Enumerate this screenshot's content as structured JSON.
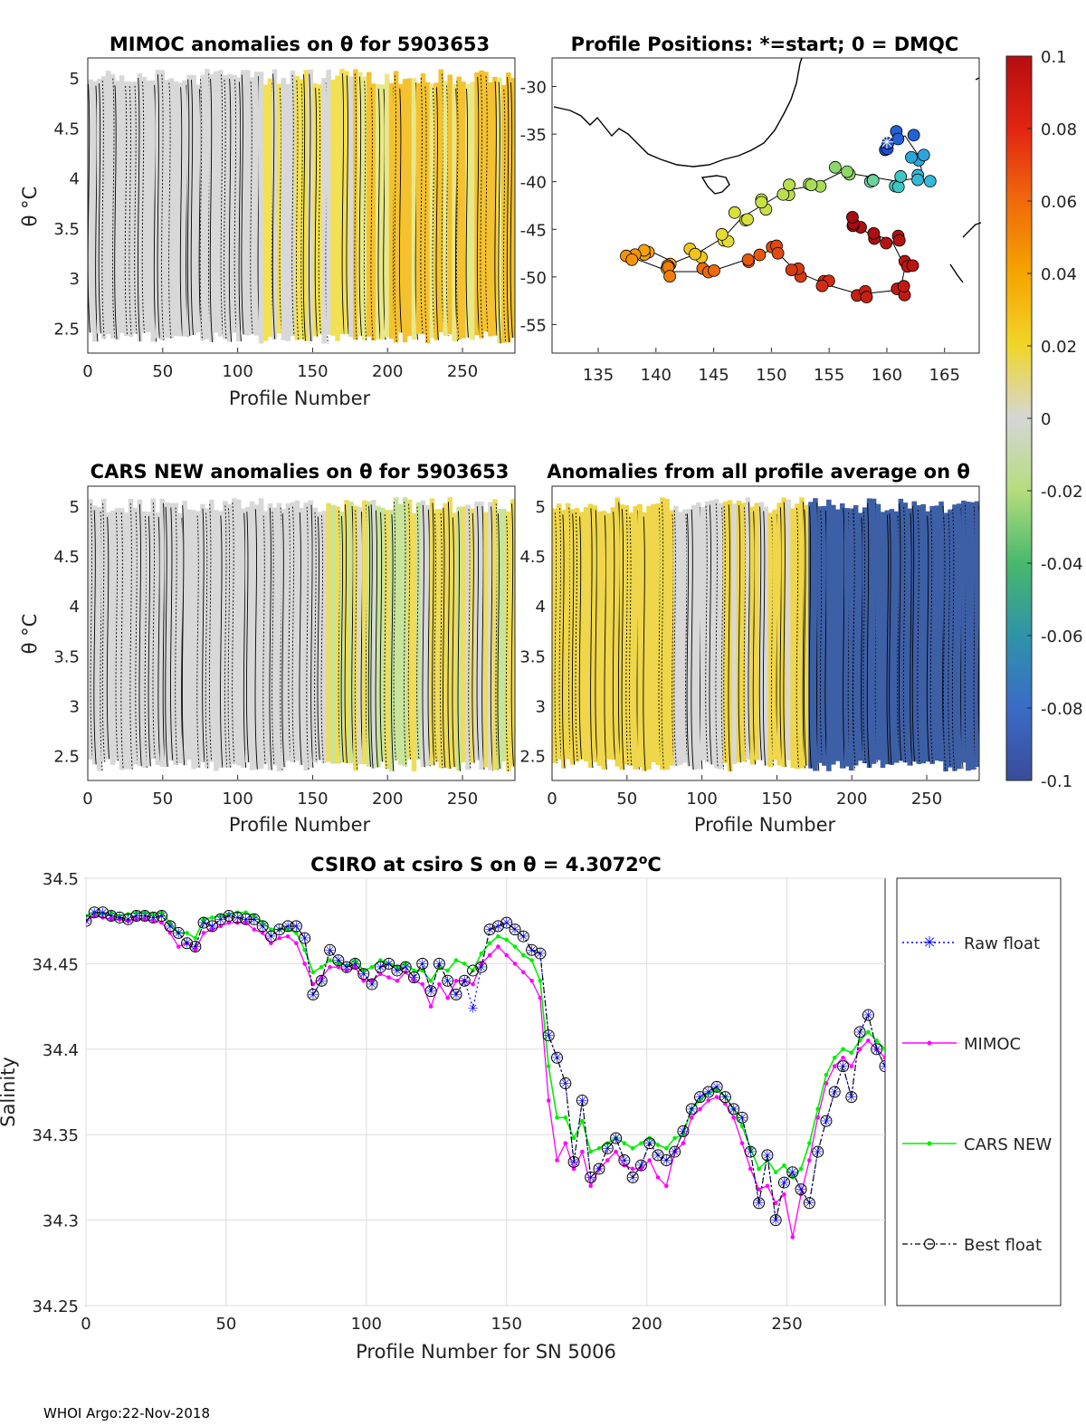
{
  "colors": {
    "raw": "#0000ff",
    "mimoc": "#ff00ff",
    "cars": "#00ee00",
    "best": "#000000",
    "grid": "#dddddd",
    "cbar": [
      "#3a4c9a",
      "#3b6ec6",
      "#2f9a9e",
      "#44b86a",
      "#b6dd7a",
      "#d4d4d4",
      "#ece44a",
      "#f5c400",
      "#f39100",
      "#e64a12",
      "#b80d12"
    ]
  },
  "footer": "WHOI Argo:22-Nov-2018",
  "colorbar": {
    "ticks": [
      "0.1",
      "0.08",
      "0.06",
      "0.04",
      "0.02",
      "0",
      "-0.02",
      "-0.04",
      "-0.06",
      "-0.08",
      "-0.1"
    ]
  },
  "panels": {
    "mimoc": {
      "title": "MIMOC anomalies on θ  for 5903653",
      "ylabel": "θ °C",
      "xlabel": "Profile Number",
      "xticks": [
        "0",
        "50",
        "100",
        "150",
        "200",
        "250"
      ],
      "yticks": [
        "5",
        "4.5",
        "4",
        "3.5",
        "3",
        "2.5"
      ]
    },
    "map": {
      "title": "Profile Positions: *=start; 0 = DMQC",
      "xticks": [
        "135",
        "140",
        "145",
        "150",
        "155",
        "160",
        "165"
      ],
      "yticks": [
        "-30",
        "-35",
        "-40",
        "-45",
        "-50",
        "-55"
      ]
    },
    "cars": {
      "title": "CARS NEW anomalies on θ for 5903653",
      "ylabel": "θ °C",
      "xlabel": "Profile Number",
      "xticks": [
        "0",
        "50",
        "100",
        "150",
        "200",
        "250"
      ],
      "yticks": [
        "5",
        "4.5",
        "4",
        "3.5",
        "3",
        "2.5"
      ]
    },
    "avg": {
      "title": "Anomalies from all profile average on θ",
      "xlabel": "Profile Number",
      "xticks": [
        "0",
        "50",
        "100",
        "150",
        "200",
        "250"
      ],
      "yticks": [
        "5",
        "4.5",
        "4",
        "3.5",
        "3",
        "2.5"
      ]
    }
  },
  "chart_data": {
    "type": "line",
    "title": "CSIRO at csiro S on θ = 4.3072°C",
    "title_prefix": "CSIRO at csiro S on θ = 4.3072",
    "title_sup": "o",
    "title_suffix": "C",
    "xlabel": "Profile Number for SN 5006",
    "ylabel": "Salinity",
    "xlim": [
      0,
      285
    ],
    "ylim": [
      34.25,
      34.5
    ],
    "xticks": [
      "0",
      "50",
      "100",
      "150",
      "200",
      "250"
    ],
    "yticks": [
      "34.5",
      "34.45",
      "34.4",
      "34.35",
      "34.3",
      "34.25"
    ],
    "legend": [
      "Raw float",
      "MIMOC",
      "CARS NEW",
      "Best float"
    ],
    "x": [
      0,
      3,
      6,
      9,
      12,
      15,
      18,
      21,
      24,
      27,
      30,
      33,
      36,
      39,
      42,
      45,
      48,
      51,
      54,
      57,
      60,
      63,
      66,
      69,
      72,
      75,
      78,
      81,
      84,
      87,
      90,
      93,
      96,
      99,
      102,
      105,
      108,
      111,
      114,
      117,
      120,
      123,
      126,
      129,
      132,
      135,
      138,
      141,
      144,
      147,
      150,
      153,
      156,
      159,
      162,
      165,
      168,
      171,
      174,
      177,
      180,
      183,
      186,
      189,
      192,
      195,
      198,
      201,
      204,
      207,
      210,
      213,
      216,
      219,
      222,
      225,
      228,
      231,
      234,
      237,
      240,
      243,
      246,
      249,
      252,
      255,
      258,
      261,
      264,
      267,
      270,
      273,
      276,
      279,
      282,
      285
    ],
    "series": [
      {
        "name": "Raw float",
        "values": [
          34.475,
          34.48,
          34.48,
          34.478,
          34.477,
          34.476,
          34.478,
          34.478,
          34.477,
          34.478,
          34.472,
          34.468,
          34.462,
          34.46,
          34.474,
          34.472,
          34.476,
          34.478,
          34.477,
          34.476,
          34.476,
          34.472,
          34.466,
          34.47,
          34.472,
          34.472,
          34.465,
          34.432,
          34.44,
          34.458,
          34.452,
          34.448,
          34.45,
          34.444,
          34.438,
          34.448,
          34.45,
          34.446,
          34.448,
          34.442,
          34.45,
          34.434,
          34.45,
          34.44,
          34.432,
          34.44,
          34.424,
          34.448,
          34.47,
          34.472,
          34.474,
          34.47,
          34.466,
          34.458,
          34.456,
          34.408,
          34.395,
          34.38,
          34.334,
          34.37,
          34.325,
          34.33,
          34.342,
          34.348,
          34.335,
          34.325,
          34.332,
          34.345,
          34.338,
          34.335,
          34.34,
          34.352,
          34.365,
          34.372,
          34.375,
          34.378,
          34.372,
          34.365,
          34.36,
          34.34,
          34.31,
          34.338,
          34.3,
          34.322,
          34.328,
          34.318,
          34.31,
          34.34,
          34.358,
          34.375,
          34.39,
          34.372,
          34.41,
          34.42,
          34.4,
          34.39
        ]
      },
      {
        "name": "MIMOC",
        "values": [
          34.475,
          34.478,
          34.477,
          34.476,
          34.476,
          34.475,
          34.476,
          34.476,
          34.475,
          34.474,
          34.468,
          34.46,
          34.462,
          34.458,
          34.468,
          34.47,
          34.472,
          34.474,
          34.474,
          34.474,
          34.47,
          34.468,
          34.462,
          34.465,
          34.466,
          34.462,
          34.45,
          34.438,
          34.442,
          34.448,
          34.448,
          34.446,
          34.448,
          34.44,
          34.44,
          34.444,
          34.442,
          34.44,
          34.445,
          34.44,
          34.438,
          34.425,
          34.438,
          34.43,
          34.44,
          34.44,
          34.438,
          34.45,
          34.455,
          34.46,
          34.455,
          34.45,
          34.445,
          34.44,
          34.43,
          34.37,
          34.335,
          34.345,
          34.33,
          34.34,
          34.32,
          34.33,
          34.335,
          34.34,
          34.332,
          34.33,
          34.33,
          34.335,
          34.325,
          34.32,
          34.34,
          34.345,
          34.36,
          34.365,
          34.37,
          34.372,
          34.368,
          34.36,
          34.345,
          34.33,
          34.318,
          34.32,
          34.31,
          34.315,
          34.29,
          34.315,
          34.335,
          34.36,
          34.38,
          34.39,
          34.395,
          34.39,
          34.4,
          34.405,
          34.4,
          34.395
        ]
      },
      {
        "name": "CARS NEW",
        "values": [
          34.478,
          34.48,
          34.479,
          34.48,
          34.478,
          34.479,
          34.48,
          34.48,
          34.479,
          34.48,
          34.474,
          34.468,
          34.468,
          34.465,
          34.476,
          34.477,
          34.478,
          34.479,
          34.48,
          34.48,
          34.478,
          34.474,
          34.47,
          34.47,
          34.47,
          34.468,
          34.458,
          34.445,
          34.448,
          34.452,
          34.45,
          34.449,
          34.452,
          34.446,
          34.448,
          34.452,
          34.45,
          34.448,
          34.45,
          34.446,
          34.446,
          34.44,
          34.448,
          34.446,
          34.452,
          34.45,
          34.446,
          34.456,
          34.462,
          34.466,
          34.464,
          34.46,
          34.455,
          34.452,
          34.44,
          34.39,
          34.36,
          34.36,
          34.348,
          34.358,
          34.34,
          34.342,
          34.345,
          34.348,
          34.345,
          34.342,
          34.345,
          34.348,
          34.344,
          34.342,
          34.348,
          34.35,
          34.365,
          34.37,
          34.374,
          34.376,
          34.372,
          34.365,
          34.355,
          34.342,
          34.33,
          34.335,
          34.328,
          34.332,
          34.325,
          34.33,
          34.345,
          34.365,
          34.385,
          34.395,
          34.4,
          34.398,
          34.405,
          34.41,
          34.405,
          34.4
        ]
      },
      {
        "name": "Best float",
        "values": [
          34.475,
          34.48,
          34.48,
          34.478,
          34.477,
          34.476,
          34.478,
          34.478,
          34.477,
          34.478,
          34.472,
          34.468,
          34.462,
          34.46,
          34.474,
          34.472,
          34.476,
          34.478,
          34.477,
          34.476,
          34.476,
          34.472,
          34.466,
          34.47,
          34.472,
          34.472,
          34.465,
          34.432,
          34.44,
          34.458,
          34.452,
          34.448,
          34.45,
          34.444,
          34.438,
          34.448,
          34.45,
          34.446,
          34.448,
          34.442,
          34.45,
          34.434,
          34.45,
          34.44,
          34.432,
          34.44,
          34.446,
          34.448,
          34.47,
          34.472,
          34.474,
          34.47,
          34.466,
          34.458,
          34.456,
          34.408,
          34.395,
          34.38,
          34.334,
          34.37,
          34.325,
          34.33,
          34.342,
          34.348,
          34.335,
          34.325,
          34.332,
          34.345,
          34.338,
          34.335,
          34.34,
          34.352,
          34.365,
          34.372,
          34.375,
          34.378,
          34.372,
          34.365,
          34.36,
          34.34,
          34.31,
          34.338,
          34.3,
          34.322,
          34.328,
          34.318,
          34.31,
          34.34,
          34.358,
          34.375,
          34.39,
          34.372,
          34.41,
          34.42,
          34.4,
          34.39
        ]
      }
    ]
  }
}
